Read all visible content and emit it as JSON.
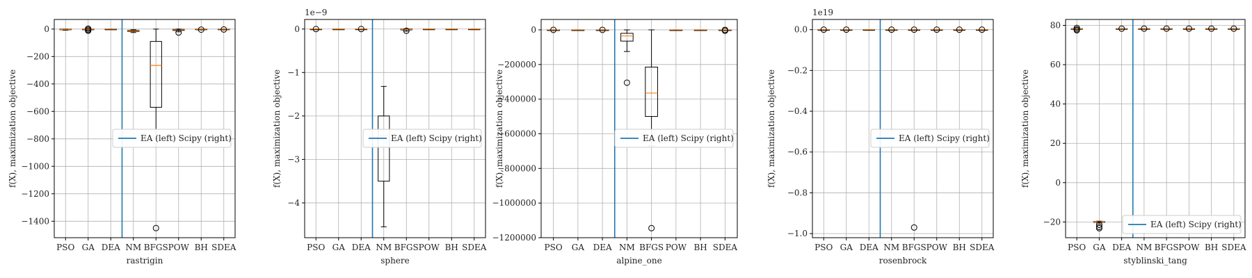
{
  "chart_data": [
    {
      "type": "box",
      "xlabel": "rastrigin",
      "ylabel": "f(X), maximization objective",
      "offset_label": "",
      "categories": [
        "PSO",
        "GA",
        "DEA",
        "NM",
        "BFGS",
        "POW",
        "BH",
        "SDEA"
      ],
      "ylim": [
        -1520,
        70
      ],
      "yticks": [
        0,
        -200,
        -400,
        -600,
        -800,
        -1000,
        -1200,
        -1400
      ],
      "ytick_labels": [
        "0",
        "−200",
        "−400",
        "−600",
        "−800",
        "−1000",
        "−1200",
        "−1400"
      ],
      "legend": {
        "label": "EA (left) Scipy (right)",
        "position": "center-right"
      },
      "boxes": [
        {
          "min": -8,
          "q1": -4,
          "median": -2,
          "q3": 0,
          "max": 0,
          "outliers": []
        },
        {
          "min": -8,
          "q1": -3,
          "median": -1,
          "q3": 0,
          "max": 0,
          "outliers": [
            -12,
            -5,
            3
          ]
        },
        {
          "min": -1,
          "q1": 0,
          "median": 0,
          "q3": 0,
          "max": 0,
          "outliers": []
        },
        {
          "min": -25,
          "q1": -18,
          "median": -14,
          "q3": -10,
          "max": -5,
          "outliers": []
        },
        {
          "min": -860,
          "q1": -570,
          "median": -265,
          "q3": -90,
          "max": 0,
          "outliers": [
            -1450
          ]
        },
        {
          "min": -20,
          "q1": -10,
          "median": -5,
          "q3": -2,
          "max": 0,
          "outliers": [
            -25
          ]
        },
        {
          "min": -6,
          "q1": -3,
          "median": -1,
          "q3": 0,
          "max": 0,
          "outliers": [
            -4
          ]
        },
        {
          "min": -5,
          "q1": -2,
          "median": -1,
          "q3": 0,
          "max": 0,
          "outliers": [
            -3
          ]
        }
      ]
    },
    {
      "type": "box",
      "xlabel": "sphere",
      "ylabel": "f(X), maximization objective",
      "offset_label": "1e−9",
      "categories": [
        "PSO",
        "GA",
        "DEA",
        "NM",
        "BFGS",
        "POW",
        "BH",
        "SDEA"
      ],
      "ylim": [
        -4.8,
        0.22
      ],
      "yticks": [
        0,
        -1,
        -2,
        -3,
        -4
      ],
      "ytick_labels": [
        "0",
        "−1",
        "−2",
        "−3",
        "−4"
      ],
      "legend": {
        "label": "EA (left) Scipy (right)",
        "position": "center-right"
      },
      "boxes": [
        {
          "min": 0,
          "q1": 0,
          "median": 0,
          "q3": 0,
          "max": 0,
          "outliers": [
            0
          ]
        },
        {
          "min": 0,
          "q1": 0,
          "median": 0,
          "q3": 0,
          "max": 0,
          "outliers": []
        },
        {
          "min": 0,
          "q1": 0,
          "median": 0,
          "q3": 0,
          "max": 0,
          "outliers": [
            0
          ]
        },
        {
          "min": -4.55,
          "q1": -3.5,
          "median": -2.45,
          "q3": -2.0,
          "max": -1.32,
          "outliers": []
        },
        {
          "min": -0.05,
          "q1": -0.02,
          "median": -0.01,
          "q3": 0,
          "max": 0,
          "outliers": [
            -0.04
          ]
        },
        {
          "min": 0,
          "q1": 0,
          "median": 0,
          "q3": 0,
          "max": 0,
          "outliers": []
        },
        {
          "min": 0,
          "q1": 0,
          "median": 0,
          "q3": 0,
          "max": 0,
          "outliers": []
        },
        {
          "min": 0,
          "q1": 0,
          "median": 0,
          "q3": 0,
          "max": 0,
          "outliers": []
        }
      ]
    },
    {
      "type": "box",
      "xlabel": "alpine_one",
      "ylabel": "f(X), maximization objective",
      "offset_label": "",
      "categories": [
        "PSO",
        "GA",
        "DEA",
        "NM",
        "BFGS",
        "POW",
        "BH",
        "SDEA"
      ],
      "ylim": [
        -1200000,
        60000
      ],
      "yticks": [
        0,
        -200000,
        -400000,
        -600000,
        -800000,
        -1000000,
        -1200000
      ],
      "ytick_labels": [
        "0",
        "−200000",
        "−400000",
        "−600000",
        "−800000",
        "−1000000",
        "−1200000"
      ],
      "legend": {
        "label": "EA (left) Scipy (right)",
        "position": "center-right"
      },
      "boxes": [
        {
          "min": 0,
          "q1": 0,
          "median": 0,
          "q3": 0,
          "max": 0,
          "outliers": [
            0
          ]
        },
        {
          "min": 0,
          "q1": 0,
          "median": 0,
          "q3": 0,
          "max": 0,
          "outliers": []
        },
        {
          "min": 0,
          "q1": 0,
          "median": 0,
          "q3": 0,
          "max": 0,
          "outliers": [
            0
          ]
        },
        {
          "min": -125000,
          "q1": -65000,
          "median": -35000,
          "q3": -20000,
          "max": 0,
          "outliers": [
            -305000
          ]
        },
        {
          "min": -670000,
          "q1": -500000,
          "median": -365000,
          "q3": -215000,
          "max": 0,
          "outliers": [
            -1145000
          ]
        },
        {
          "min": 0,
          "q1": 0,
          "median": 0,
          "q3": 0,
          "max": 0,
          "outliers": []
        },
        {
          "min": 0,
          "q1": 0,
          "median": 0,
          "q3": 0,
          "max": 0,
          "outliers": []
        },
        {
          "min": 0,
          "q1": 0,
          "median": 0,
          "q3": 0,
          "max": 0,
          "outliers": [
            0,
            -5000
          ]
        }
      ]
    },
    {
      "type": "box",
      "xlabel": "rosenbrock",
      "ylabel": "f(X), maximization objective",
      "offset_label": "1e19",
      "categories": [
        "PSO",
        "GA",
        "DEA",
        "NM",
        "BFGS",
        "POW",
        "BH",
        "SDEA"
      ],
      "ylim": [
        -1.02,
        0.05
      ],
      "yticks": [
        0.0,
        -0.2,
        -0.4,
        -0.6,
        -0.8,
        -1.0
      ],
      "ytick_labels": [
        "0.0",
        "−0.2",
        "−0.4",
        "−0.6",
        "−0.8",
        "−1.0"
      ],
      "legend": {
        "label": "EA (left) Scipy (right)",
        "position": "center-right"
      },
      "boxes": [
        {
          "min": 0,
          "q1": 0,
          "median": 0,
          "q3": 0,
          "max": 0,
          "outliers": [
            0
          ]
        },
        {
          "min": 0,
          "q1": 0,
          "median": 0,
          "q3": 0,
          "max": 0,
          "outliers": [
            0
          ]
        },
        {
          "min": 0,
          "q1": 0,
          "median": 0,
          "q3": 0,
          "max": 0,
          "outliers": []
        },
        {
          "min": 0,
          "q1": 0,
          "median": 0,
          "q3": 0,
          "max": 0,
          "outliers": [
            0
          ]
        },
        {
          "min": 0,
          "q1": 0,
          "median": 0,
          "q3": 0,
          "max": 0,
          "outliers": [
            0,
            -0.97
          ]
        },
        {
          "min": 0,
          "q1": 0,
          "median": 0,
          "q3": 0,
          "max": 0,
          "outliers": [
            0
          ]
        },
        {
          "min": 0,
          "q1": 0,
          "median": 0,
          "q3": 0,
          "max": 0,
          "outliers": [
            0
          ]
        },
        {
          "min": 0,
          "q1": 0,
          "median": 0,
          "q3": 0,
          "max": 0,
          "outliers": [
            0
          ]
        }
      ]
    },
    {
      "type": "box",
      "xlabel": "styblinski_tang",
      "ylabel": "f(X), maximization objective",
      "offset_label": "",
      "categories": [
        "PSO",
        "GA",
        "DEA",
        "NM",
        "BFGS",
        "POW",
        "BH",
        "SDEA"
      ],
      "ylim": [
        -28,
        83
      ],
      "yticks": [
        80,
        60,
        40,
        20,
        0,
        -20
      ],
      "ytick_labels": [
        "80",
        "60",
        "40",
        "20",
        "0",
        "−20"
      ],
      "legend": {
        "label": "EA (left) Scipy (right)",
        "position": "lower-right"
      },
      "boxes": [
        {
          "min": 78.3,
          "q1": 78.3,
          "median": 78.33,
          "q3": 78.33,
          "max": 78.33,
          "outliers": [
            77.5,
            78.0,
            78.7
          ]
        },
        {
          "min": -20.5,
          "q1": -20.2,
          "median": -20.0,
          "q3": -19.8,
          "max": -19.6,
          "outliers": [
            -21.5,
            -22.5,
            -23.2
          ]
        },
        {
          "min": 78.33,
          "q1": 78.33,
          "median": 78.33,
          "q3": 78.33,
          "max": 78.33,
          "outliers": [
            78.33
          ]
        },
        {
          "min": 78.33,
          "q1": 78.33,
          "median": 78.33,
          "q3": 78.33,
          "max": 78.33,
          "outliers": [
            78.33
          ]
        },
        {
          "min": 78.33,
          "q1": 78.33,
          "median": 78.33,
          "q3": 78.33,
          "max": 78.33,
          "outliers": [
            78.33
          ]
        },
        {
          "min": 78.33,
          "q1": 78.33,
          "median": 78.33,
          "q3": 78.33,
          "max": 78.33,
          "outliers": [
            78.33
          ]
        },
        {
          "min": 78.33,
          "q1": 78.33,
          "median": 78.33,
          "q3": 78.33,
          "max": 78.33,
          "outliers": [
            78.33
          ]
        },
        {
          "min": 78.33,
          "q1": 78.33,
          "median": 78.33,
          "q3": 78.33,
          "max": 78.33,
          "outliers": [
            78.33
          ]
        }
      ]
    }
  ],
  "colors": {
    "divider": "#1f77b4",
    "median": "#ff7f0e",
    "box": "#000000",
    "grid": "#b0b0b0"
  }
}
